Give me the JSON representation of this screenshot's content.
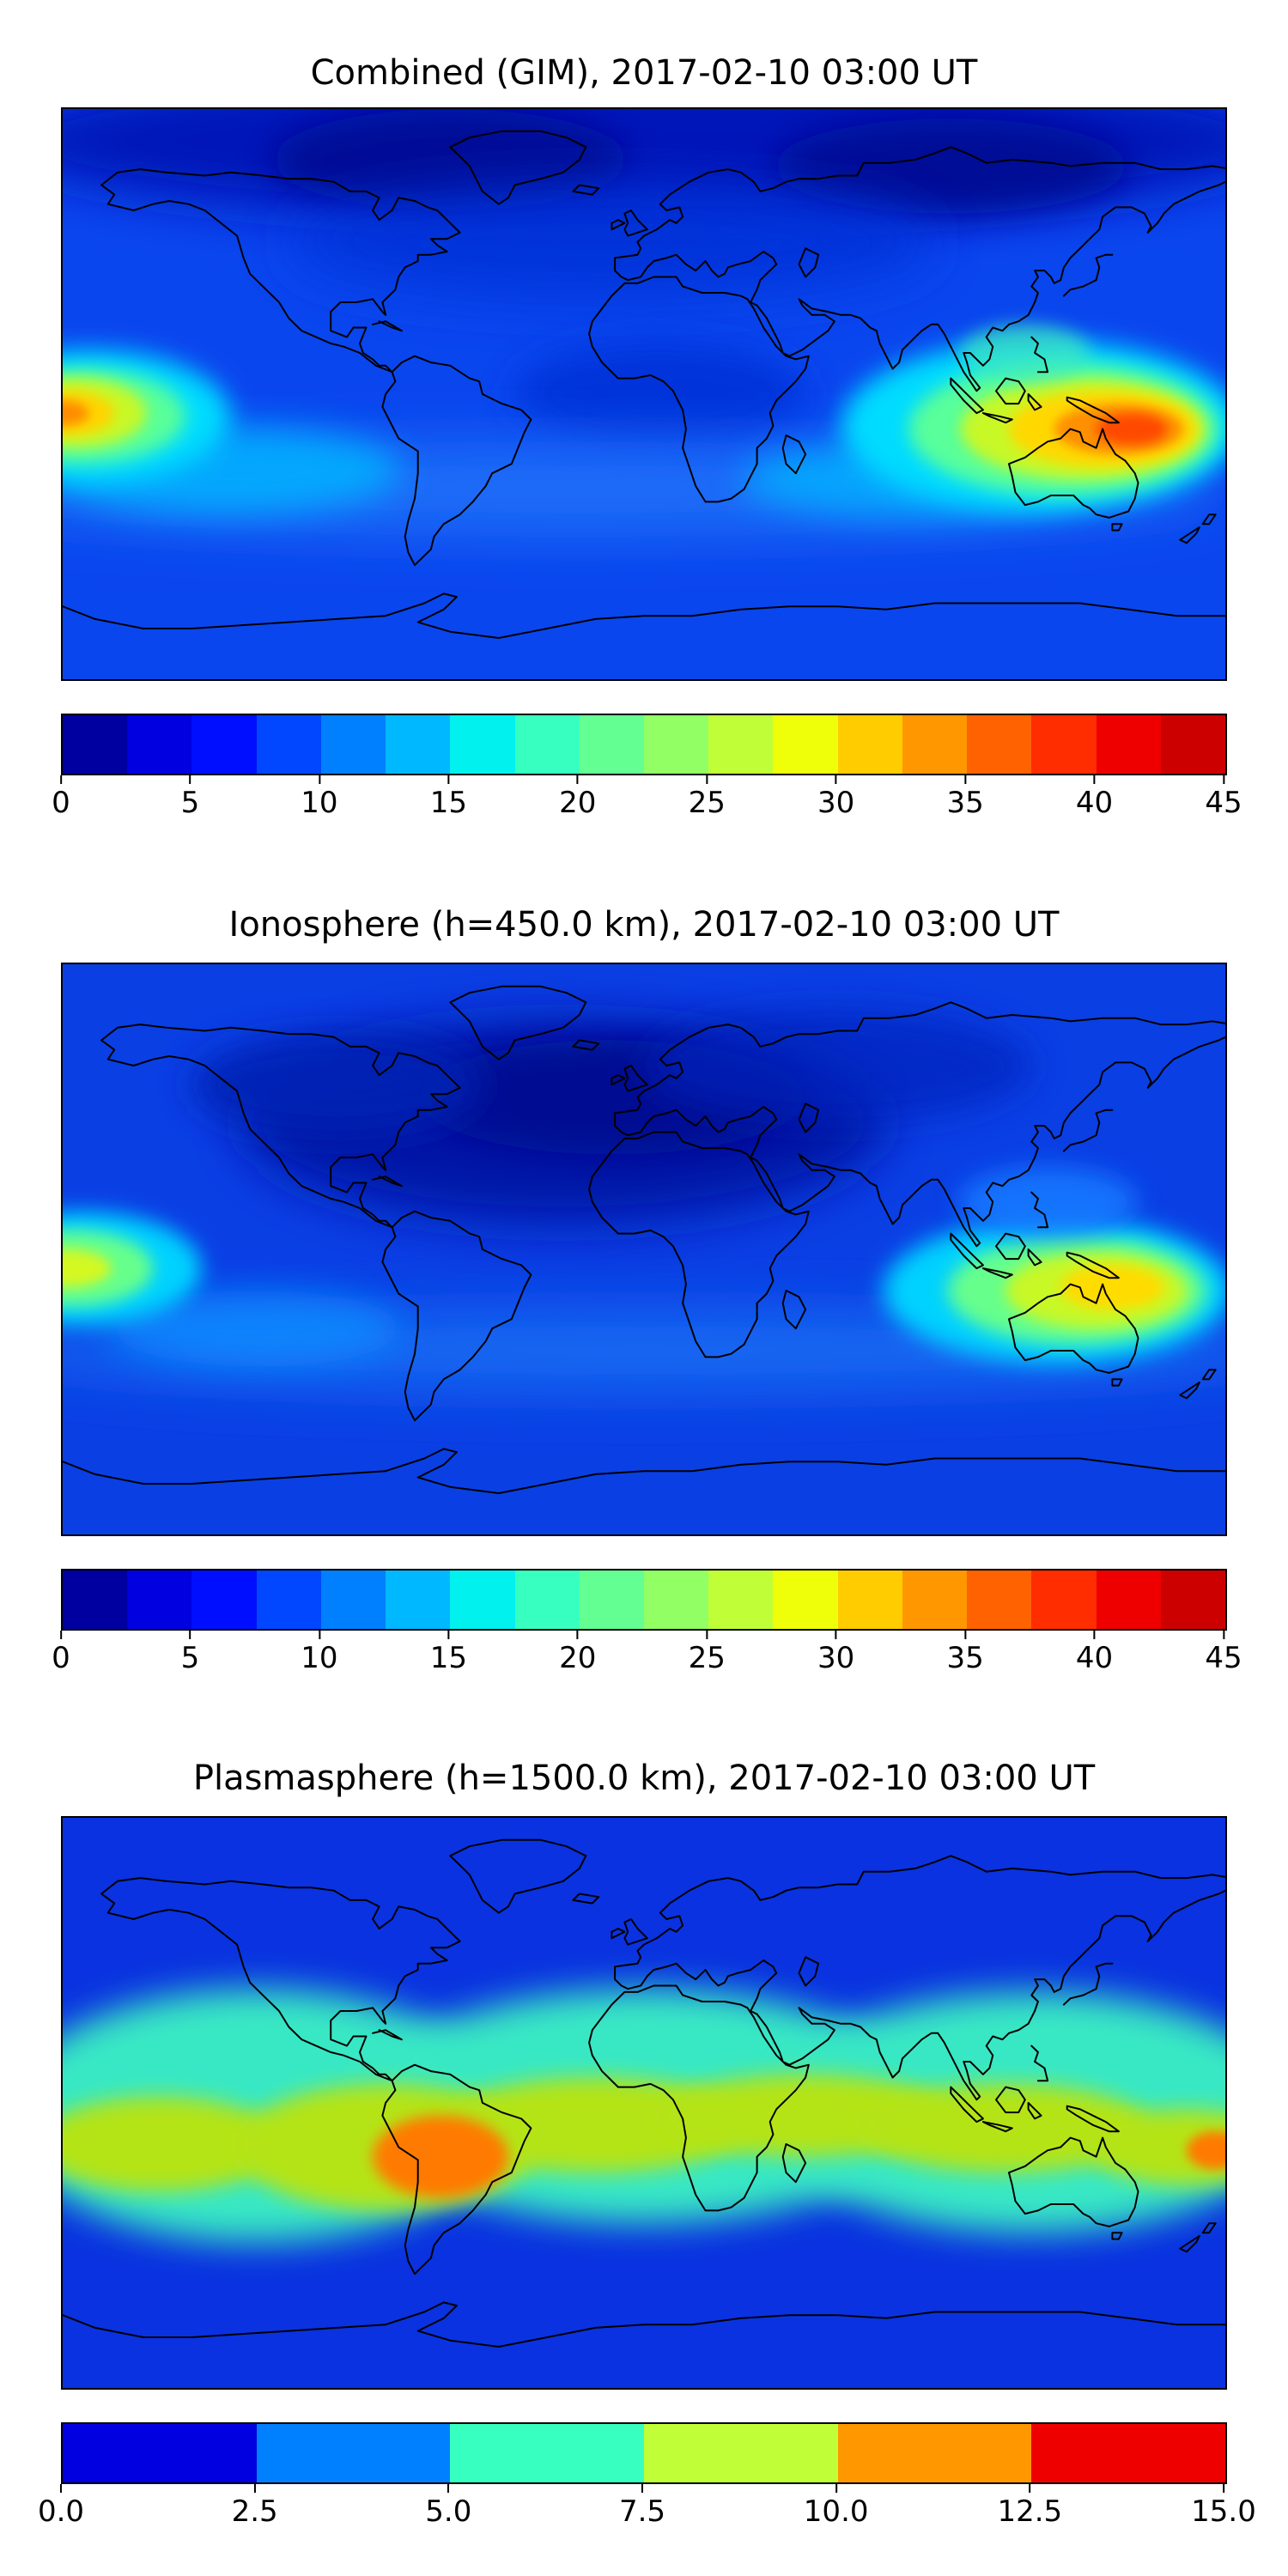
{
  "page": {
    "background_color": "#ffffff",
    "description": "Three stacked global filled-contour maps (equirectangular, black coastlines) of electron content at 2017-02-10 03:00 UT, each with a horizontal jet colorbar below it."
  },
  "chart_data": [
    {
      "type": "heatmap",
      "title": "Combined (GIM), 2017-02-10 03:00 UT",
      "map": "global equirectangular world map with black coastlines, filled contours, jet colormap",
      "lon_range": [
        -180,
        180
      ],
      "lat_range": [
        -90,
        90
      ],
      "colormap": "jet",
      "value_range": [
        0,
        45
      ],
      "colorbar_ticks": [
        "0",
        "5",
        "10",
        "15",
        "20",
        "25",
        "30",
        "35",
        "40",
        "45"
      ],
      "colorbar_colors": [
        "#0000a0",
        "#0000e0",
        "#000eff",
        "#0047ff",
        "#0080ff",
        "#00b8ff",
        "#00f1ee",
        "#37ffc0",
        "#64ff92",
        "#92ff64",
        "#c0ff37",
        "#eeff09",
        "#ffcc00",
        "#ff9700",
        "#ff6200",
        "#ff2d00",
        "#ef0000",
        "#cd0000"
      ],
      "features": [
        {
          "region": "west Pacific / Maritime Continent, lon 110E-170E, lat 25S-5N",
          "peak_value": 42,
          "appearance": "orange-red maximum"
        },
        {
          "region": "central Pacific at left map edge, lon 180W-150W, lat ~5S",
          "peak_value": 33,
          "appearance": "yellow-orange secondary maximum"
        },
        {
          "region": "northern high latitudes",
          "value_range": [
            0,
            5
          ],
          "appearance": "dark navy minimum"
        },
        {
          "region": "southern mid-latitude band",
          "value_range": [
            10,
            18
          ],
          "appearance": "cyan / light-blue band"
        }
      ]
    },
    {
      "type": "heatmap",
      "title": "Ionosphere  (h=450.0 km), 2017-02-10 03:00 UT",
      "map": "global equirectangular world map with black coastlines, filled contours, jet colormap",
      "lon_range": [
        -180,
        180
      ],
      "lat_range": [
        -90,
        90
      ],
      "colormap": "jet",
      "value_range": [
        0,
        45
      ],
      "colorbar_ticks": [
        "0",
        "5",
        "10",
        "15",
        "20",
        "25",
        "30",
        "35",
        "40",
        "45"
      ],
      "colorbar_colors": [
        "#0000a0",
        "#0000e0",
        "#000eff",
        "#0047ff",
        "#0080ff",
        "#00b8ff",
        "#00f1ee",
        "#37ffc0",
        "#64ff92",
        "#92ff64",
        "#c0ff37",
        "#eeff09",
        "#ffcc00",
        "#ff9700",
        "#ff6200",
        "#ff2d00",
        "#ef0000",
        "#cd0000"
      ],
      "features": [
        {
          "region": "west Pacific, lon 115E-165E, lat 25S-0",
          "peak_value": 31,
          "appearance": "yellow / yellow-green maximum"
        },
        {
          "region": "central Pacific at left map edge, lat ~5S",
          "peak_value": 27,
          "appearance": "yellow-green maximum"
        },
        {
          "region": "North America, Atlantic, Europe and north Africa",
          "value_range": [
            0,
            5
          ],
          "appearance": "large dark navy minimum"
        },
        {
          "region": "southern mid-latitude band",
          "value_range": [
            8,
            14
          ],
          "appearance": "lighter blue band"
        }
      ]
    },
    {
      "type": "heatmap",
      "title": "Plasmasphere (h=1500.0 km), 2017-02-10 03:00 UT",
      "map": "global equirectangular world map with black coastlines, filled contours, jet colormap",
      "lon_range": [
        -180,
        180
      ],
      "lat_range": [
        -90,
        90
      ],
      "colormap": "jet",
      "value_range": [
        0,
        15
      ],
      "colorbar_ticks": [
        "0.0",
        "2.5",
        "5.0",
        "7.5",
        "10.0",
        "12.5",
        "15.0"
      ],
      "colorbar_colors": [
        "#0000e0",
        "#0080ff",
        "#37ffc0",
        "#c0ff37",
        "#ff9700",
        "#ef0000"
      ],
      "features": [
        {
          "region": "equatorial belt (wavy band following geomagnetic equator)",
          "value_range": [
            7.5,
            10
          ],
          "appearance": "yellow-green band"
        },
        {
          "region": "over central South America, lon ~65W, lat ~17S",
          "value_range": [
            10,
            12.5
          ],
          "appearance": "large orange patch"
        },
        {
          "region": "right map edge, lon ~178E, lat ~15S",
          "value_range": [
            10,
            12.5
          ],
          "appearance": "small orange patch"
        },
        {
          "region": "mid-latitudes both hemispheres",
          "value_range": [
            5,
            7.5
          ],
          "appearance": "turquoise band"
        },
        {
          "region": "high latitudes / polar caps",
          "value_range": [
            0,
            5
          ],
          "appearance": "uniform blue"
        }
      ]
    }
  ]
}
